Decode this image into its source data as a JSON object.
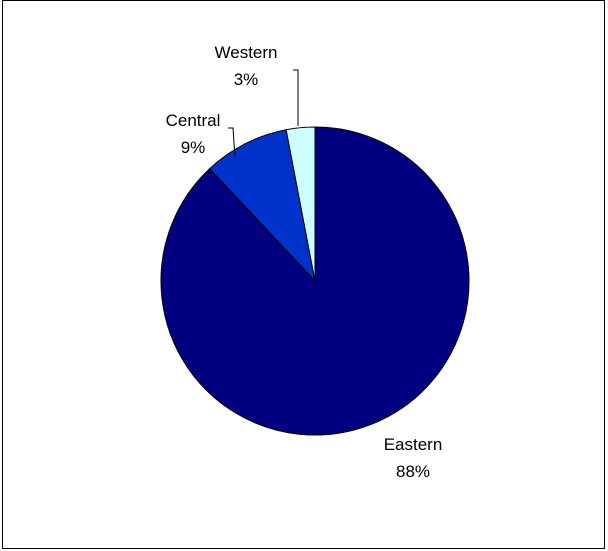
{
  "chart_data": {
    "type": "pie",
    "title": "",
    "legend": "none",
    "slices": [
      {
        "label": "Eastern",
        "value": 88,
        "value_label": "88%",
        "color": "#000080"
      },
      {
        "label": "Central",
        "value": 9,
        "value_label": "9%",
        "color": "#0033CC"
      },
      {
        "label": "Western",
        "value": 3,
        "value_label": "3%",
        "color": "#CCFFFF"
      }
    ]
  }
}
